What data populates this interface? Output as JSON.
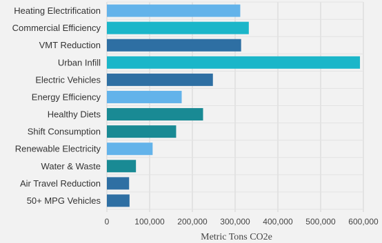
{
  "chart_data": {
    "type": "bar",
    "orientation": "horizontal",
    "categories": [
      "Heating Electrification",
      "Commercial Efficiency",
      "VMT Reduction",
      "Urban Infill",
      "Electric Vehicles",
      "Energy Efficiency",
      "Healthy Diets",
      "Shift Consumption",
      "Renewable Electricity",
      "Water & Waste",
      "Air Travel Reduction",
      "50+ MPG Vehicles"
    ],
    "values": [
      312000,
      332000,
      314000,
      592000,
      248000,
      175000,
      225000,
      162000,
      107000,
      68000,
      52000,
      53000
    ],
    "bar_colors": [
      "#63b3ea",
      "#1bb6c9",
      "#2e6fa3",
      "#1bb6c9",
      "#2e6fa3",
      "#63b3ea",
      "#198a94",
      "#198a94",
      "#63b3ea",
      "#198a94",
      "#2e6fa3",
      "#2e6fa3"
    ],
    "title": "",
    "xlabel": "Metric Tons CO2e",
    "ylabel": "",
    "xlim": [
      0,
      600000
    ],
    "x_ticks": [
      0,
      100000,
      200000,
      300000,
      400000,
      500000,
      600000
    ],
    "x_tick_labels": [
      "0",
      "100,000",
      "200,000",
      "300,000",
      "400,000",
      "500,000",
      "600,000"
    ],
    "grid": true,
    "legend": "none"
  }
}
